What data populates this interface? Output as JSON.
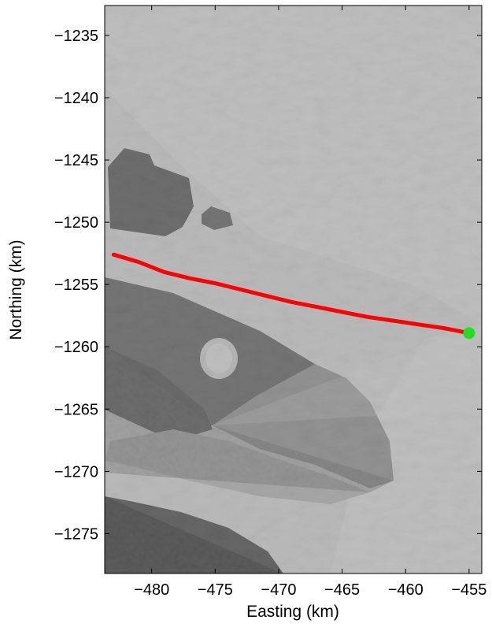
{
  "chart_data": {
    "type": "line",
    "title": "",
    "xlabel": "Easting (km)",
    "ylabel": "Northing (km)",
    "xlim": [
      -483.7,
      -454.0
    ],
    "ylim": [
      -1278.2,
      -1232.6
    ],
    "x_ticks": [
      -480,
      -475,
      -470,
      -465,
      -460,
      -455
    ],
    "x_tick_labels": [
      "−480",
      "−475",
      "−470",
      "−465",
      "−460",
      "−455"
    ],
    "y_ticks": [
      -1235,
      -1240,
      -1245,
      -1250,
      -1255,
      -1260,
      -1265,
      -1270,
      -1275
    ],
    "y_tick_labels": [
      "−1235",
      "−1240",
      "−1245",
      "−1250",
      "−1255",
      "−1260",
      "−1265",
      "−1270",
      "−1275"
    ],
    "background": "grayscale satellite image",
    "grid": false,
    "legend": "none",
    "series": [
      {
        "color": "#ff0000",
        "x": [
          -483.0,
          -481.0,
          -479.0,
          -477.0,
          -475.0,
          -473.0,
          -471.0,
          -469.0,
          -467.0,
          -465.0,
          -463.0,
          -461.0,
          -459.0,
          -457.0,
          -455.0
        ],
        "y": [
          -1252.6,
          -1253.2,
          -1254.0,
          -1254.5,
          -1254.9,
          -1255.4,
          -1255.9,
          -1256.4,
          -1256.8,
          -1257.2,
          -1257.6,
          -1257.9,
          -1258.2,
          -1258.5,
          -1258.9
        ]
      }
    ],
    "markers": [
      {
        "x": -455.0,
        "y": -1258.9,
        "color": "#22dd22"
      }
    ],
    "line_color": "#ff0000",
    "marker_color": "#22dd22"
  }
}
